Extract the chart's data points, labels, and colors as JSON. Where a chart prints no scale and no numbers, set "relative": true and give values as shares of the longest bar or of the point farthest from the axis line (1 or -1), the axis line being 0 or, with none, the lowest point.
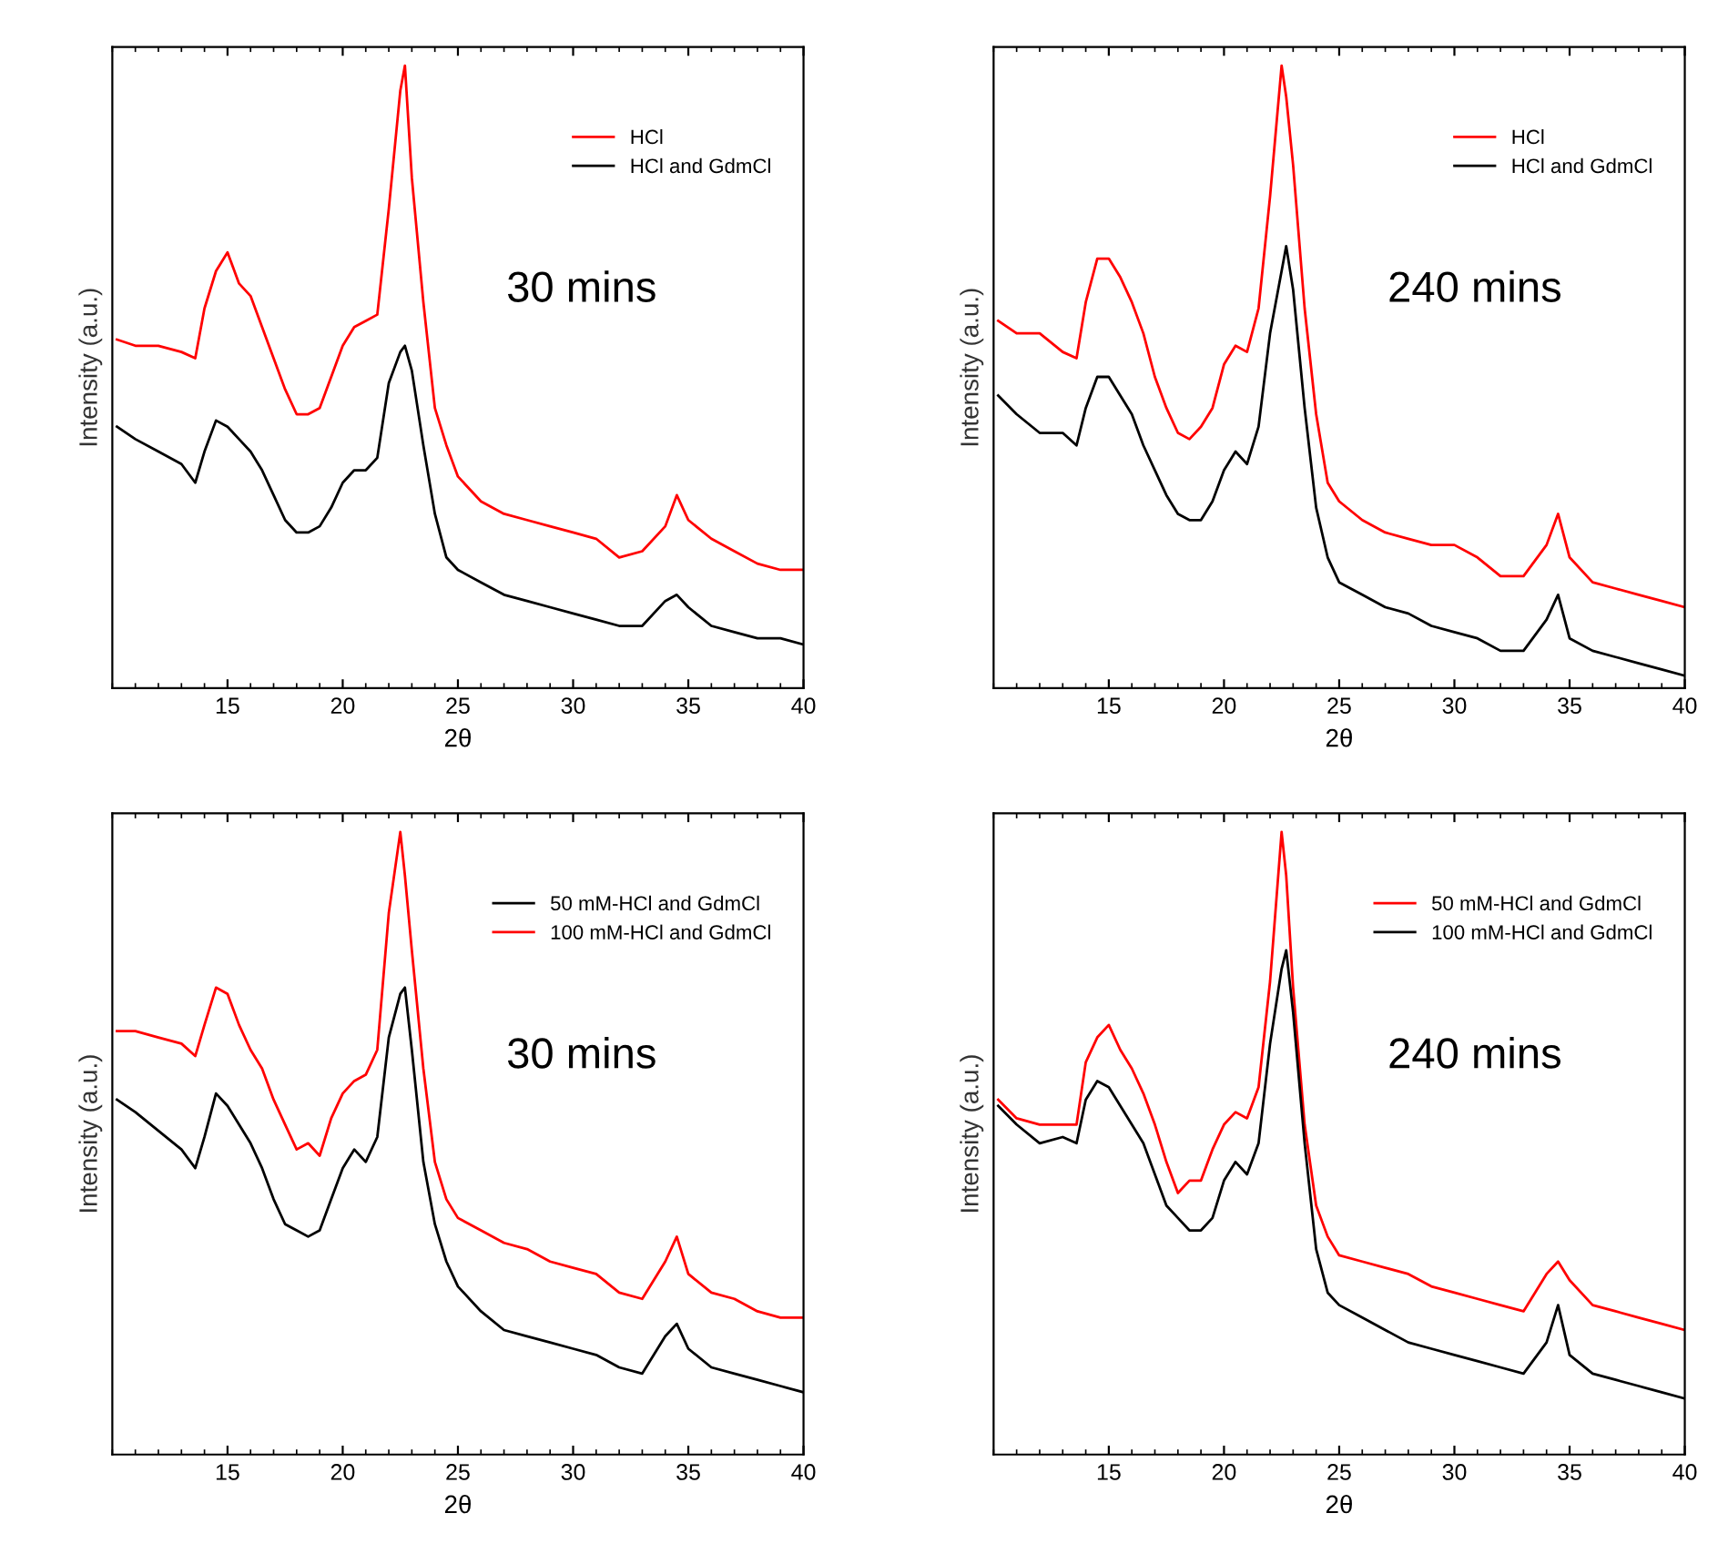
{
  "chart_data": [
    {
      "type": "line",
      "relative": true,
      "xlabel": "2θ",
      "ylabel": "Intensity (a.u.)",
      "annotations": [
        "30 mins"
      ],
      "xlim": [
        10,
        40
      ],
      "xticks": [
        15,
        20,
        25,
        30,
        35,
        40
      ],
      "tick_labels": "x",
      "legend": "top right",
      "grid": false,
      "x": [
        10.2,
        11,
        12,
        13,
        13.6,
        14,
        14.5,
        15,
        15.5,
        16,
        16.5,
        17,
        17.5,
        18,
        18.5,
        19,
        19.5,
        20,
        20.5,
        21,
        21.5,
        22,
        22.5,
        22.7,
        23,
        23.5,
        24,
        24.5,
        25,
        26,
        27,
        28,
        29,
        30,
        31,
        32,
        33,
        34,
        34.5,
        35,
        36,
        37,
        38,
        39,
        40
      ],
      "series": [
        {
          "name": "HCl",
          "color": "#ff0000",
          "values": [
            0.56,
            0.55,
            0.55,
            0.54,
            0.53,
            0.61,
            0.67,
            0.7,
            0.65,
            0.63,
            0.58,
            0.53,
            0.48,
            0.44,
            0.44,
            0.45,
            0.5,
            0.55,
            0.58,
            0.59,
            0.6,
            0.77,
            0.96,
            1.0,
            0.82,
            0.62,
            0.45,
            0.39,
            0.34,
            0.3,
            0.28,
            0.27,
            0.26,
            0.25,
            0.24,
            0.21,
            0.22,
            0.26,
            0.31,
            0.27,
            0.24,
            0.22,
            0.2,
            0.19,
            0.19
          ]
        },
        {
          "name": "HCl and GdmCl",
          "color": "#000000",
          "values": [
            0.42,
            0.4,
            0.38,
            0.36,
            0.33,
            0.38,
            0.43,
            0.42,
            0.4,
            0.38,
            0.35,
            0.31,
            0.27,
            0.25,
            0.25,
            0.26,
            0.29,
            0.33,
            0.35,
            0.35,
            0.37,
            0.49,
            0.54,
            0.55,
            0.51,
            0.39,
            0.28,
            0.21,
            0.19,
            0.17,
            0.15,
            0.14,
            0.13,
            0.12,
            0.11,
            0.1,
            0.1,
            0.14,
            0.15,
            0.13,
            0.1,
            0.09,
            0.08,
            0.08,
            0.07
          ]
        }
      ]
    },
    {
      "type": "line",
      "relative": true,
      "xlabel": "2θ",
      "ylabel": "Intensity (a.u.)",
      "annotations": [
        "240 mins"
      ],
      "xlim": [
        10,
        40
      ],
      "xticks": [
        15,
        20,
        25,
        30,
        35,
        40
      ],
      "tick_labels": "x",
      "legend": "top right",
      "grid": false,
      "x": [
        10.2,
        11,
        12,
        13,
        13.6,
        14,
        14.5,
        15,
        15.5,
        16,
        16.5,
        17,
        17.5,
        18,
        18.5,
        19,
        19.5,
        20,
        20.5,
        21,
        21.5,
        22,
        22.5,
        22.7,
        23,
        23.5,
        24,
        24.5,
        25,
        26,
        27,
        28,
        29,
        30,
        31,
        32,
        33,
        34,
        34.5,
        35,
        36,
        37,
        38,
        39,
        40
      ],
      "series": [
        {
          "name": "HCl",
          "color": "#ff0000",
          "values": [
            0.59,
            0.57,
            0.57,
            0.54,
            0.53,
            0.62,
            0.69,
            0.69,
            0.66,
            0.62,
            0.57,
            0.5,
            0.45,
            0.41,
            0.4,
            0.42,
            0.45,
            0.52,
            0.55,
            0.54,
            0.61,
            0.79,
            1.0,
            0.95,
            0.84,
            0.61,
            0.44,
            0.33,
            0.3,
            0.27,
            0.25,
            0.24,
            0.23,
            0.23,
            0.21,
            0.18,
            0.18,
            0.23,
            0.28,
            0.21,
            0.17,
            0.16,
            0.15,
            0.14,
            0.13
          ]
        },
        {
          "name": "HCl and GdmCl",
          "color": "#000000",
          "values": [
            0.47,
            0.44,
            0.41,
            0.41,
            0.39,
            0.45,
            0.5,
            0.5,
            0.47,
            0.44,
            0.39,
            0.35,
            0.31,
            0.28,
            0.27,
            0.27,
            0.3,
            0.35,
            0.38,
            0.36,
            0.42,
            0.57,
            0.67,
            0.71,
            0.64,
            0.45,
            0.29,
            0.21,
            0.17,
            0.15,
            0.13,
            0.12,
            0.1,
            0.09,
            0.08,
            0.06,
            0.06,
            0.11,
            0.15,
            0.08,
            0.06,
            0.05,
            0.04,
            0.03,
            0.02
          ]
        }
      ]
    },
    {
      "type": "line",
      "relative": true,
      "xlabel": "2θ",
      "ylabel": "Intensity (a.u.)",
      "annotations": [
        "30 mins"
      ],
      "xlim": [
        10,
        40
      ],
      "xticks": [
        15,
        20,
        25,
        30,
        35,
        40
      ],
      "tick_labels": "x",
      "legend": "top right",
      "grid": false,
      "x": [
        10.2,
        11,
        12,
        13,
        13.6,
        14,
        14.5,
        15,
        15.5,
        16,
        16.5,
        17,
        17.5,
        18,
        18.5,
        19,
        19.5,
        20,
        20.5,
        21,
        21.5,
        22,
        22.5,
        22.7,
        23,
        23.5,
        24,
        24.5,
        25,
        26,
        27,
        28,
        29,
        30,
        31,
        32,
        33,
        34,
        34.5,
        35,
        36,
        37,
        38,
        39,
        40
      ],
      "series": [
        {
          "name": "50 mM-HCl and GdmCl",
          "color": "#000000",
          "values": [
            0.57,
            0.55,
            0.52,
            0.49,
            0.46,
            0.51,
            0.58,
            0.56,
            0.53,
            0.5,
            0.46,
            0.41,
            0.37,
            0.36,
            0.35,
            0.36,
            0.41,
            0.46,
            0.49,
            0.47,
            0.51,
            0.67,
            0.74,
            0.75,
            0.65,
            0.47,
            0.37,
            0.31,
            0.27,
            0.23,
            0.2,
            0.19,
            0.18,
            0.17,
            0.16,
            0.14,
            0.13,
            0.19,
            0.21,
            0.17,
            0.14,
            0.13,
            0.12,
            0.11,
            0.1
          ]
        },
        {
          "name": "100 mM-HCl and GdmCl",
          "color": "#ff0000",
          "values": [
            0.68,
            0.68,
            0.67,
            0.66,
            0.64,
            0.69,
            0.75,
            0.74,
            0.69,
            0.65,
            0.62,
            0.57,
            0.53,
            0.49,
            0.5,
            0.48,
            0.54,
            0.58,
            0.6,
            0.61,
            0.65,
            0.87,
            1.0,
            0.93,
            0.81,
            0.62,
            0.47,
            0.41,
            0.38,
            0.36,
            0.34,
            0.33,
            0.31,
            0.3,
            0.29,
            0.26,
            0.25,
            0.31,
            0.35,
            0.29,
            0.26,
            0.25,
            0.23,
            0.22,
            0.22
          ]
        }
      ]
    },
    {
      "type": "line",
      "relative": true,
      "xlabel": "2θ",
      "ylabel": "Intensity (a.u.)",
      "annotations": [
        "240 mins"
      ],
      "xlim": [
        10,
        40
      ],
      "xticks": [
        15,
        20,
        25,
        30,
        35,
        40
      ],
      "tick_labels": "x",
      "legend": "top right",
      "grid": false,
      "x": [
        10.2,
        11,
        12,
        13,
        13.6,
        14,
        14.5,
        15,
        15.5,
        16,
        16.5,
        17,
        17.5,
        18,
        18.5,
        19,
        19.5,
        20,
        20.5,
        21,
        21.5,
        22,
        22.5,
        22.7,
        23,
        23.5,
        24,
        24.5,
        25,
        26,
        27,
        28,
        29,
        30,
        31,
        32,
        33,
        34,
        34.5,
        35,
        36,
        37,
        38,
        39,
        40
      ],
      "series": [
        {
          "name": "50 mM-HCl and GdmCl",
          "color": "#ff0000",
          "values": [
            0.57,
            0.54,
            0.53,
            0.53,
            0.53,
            0.63,
            0.67,
            0.69,
            0.65,
            0.62,
            0.58,
            0.53,
            0.47,
            0.42,
            0.44,
            0.44,
            0.49,
            0.53,
            0.55,
            0.54,
            0.59,
            0.76,
            1.0,
            0.93,
            0.75,
            0.53,
            0.4,
            0.35,
            0.32,
            0.31,
            0.3,
            0.29,
            0.27,
            0.26,
            0.25,
            0.24,
            0.23,
            0.29,
            0.31,
            0.28,
            0.24,
            0.23,
            0.22,
            0.21,
            0.2
          ]
        },
        {
          "name": "100 mM-HCl and GdmCl",
          "color": "#000000",
          "values": [
            0.56,
            0.53,
            0.5,
            0.51,
            0.5,
            0.57,
            0.6,
            0.59,
            0.56,
            0.53,
            0.5,
            0.45,
            0.4,
            0.38,
            0.36,
            0.36,
            0.38,
            0.44,
            0.47,
            0.45,
            0.5,
            0.66,
            0.78,
            0.81,
            0.71,
            0.5,
            0.33,
            0.26,
            0.24,
            0.22,
            0.2,
            0.18,
            0.17,
            0.16,
            0.15,
            0.14,
            0.13,
            0.18,
            0.24,
            0.16,
            0.13,
            0.12,
            0.11,
            0.1,
            0.09
          ]
        }
      ]
    }
  ]
}
